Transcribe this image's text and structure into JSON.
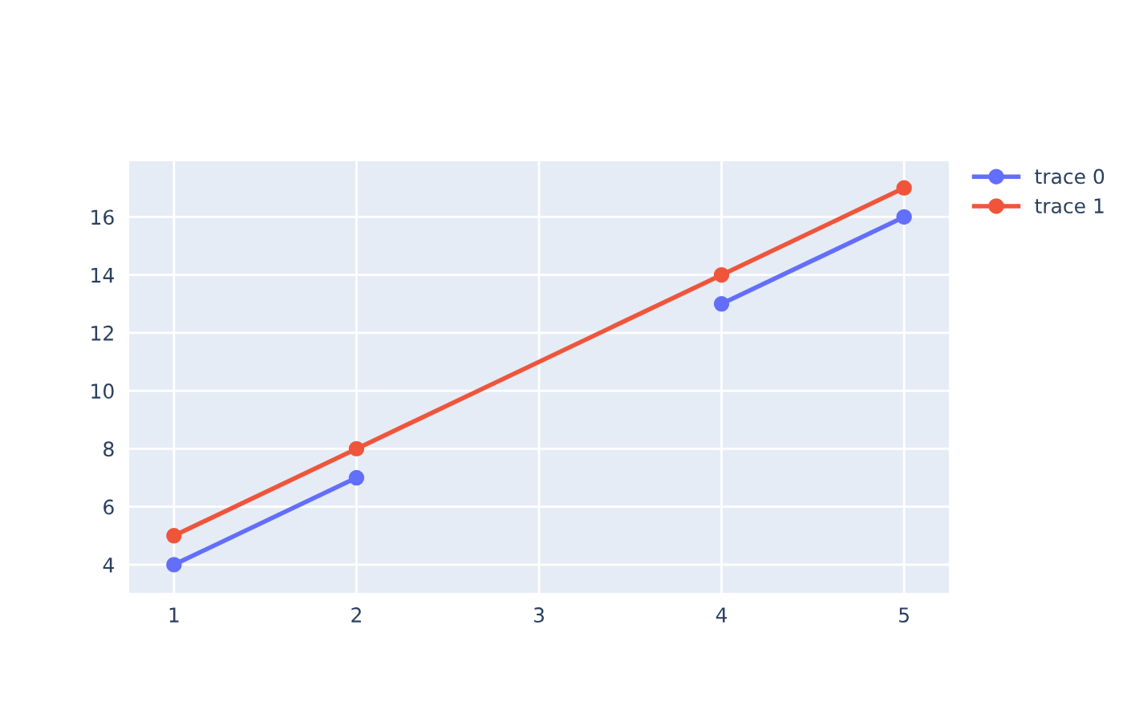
{
  "chart_data": {
    "type": "line",
    "x": [
      1,
      2,
      3,
      4,
      5
    ],
    "series": [
      {
        "name": "trace 0",
        "color": "#636efa",
        "values": [
          4,
          7,
          null,
          13,
          16
        ]
      },
      {
        "name": "trace 1",
        "color": "#ef553b",
        "x": [
          1,
          2,
          4,
          5
        ],
        "values": [
          5,
          8,
          14,
          17
        ]
      }
    ],
    "xlim": [
      0.75,
      5.25
    ],
    "xticks": [
      1,
      2,
      3,
      4,
      5
    ],
    "ylim": [
      3,
      17.95
    ],
    "yticks": [
      4,
      6,
      8,
      10,
      12,
      14,
      16
    ],
    "grid": true,
    "legend": "top right",
    "marker": "circle",
    "line_style": "solid"
  }
}
